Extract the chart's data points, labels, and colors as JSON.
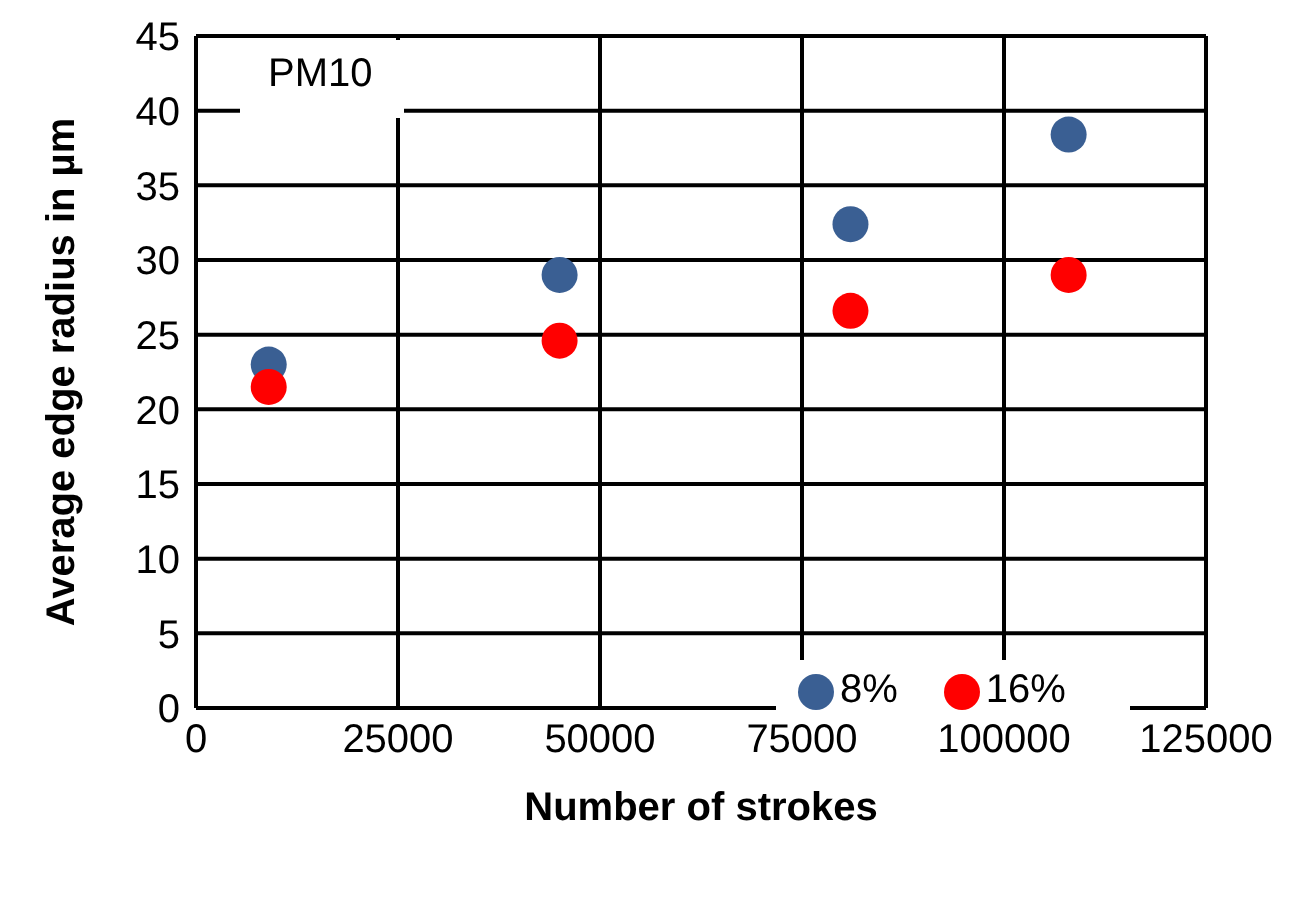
{
  "chart_data": {
    "type": "scatter",
    "xlabel": "Number of strokes",
    "ylabel": "Average edge radius in µm",
    "annotations": [
      "PM10"
    ],
    "x": [
      9000,
      45000,
      81000,
      108000
    ],
    "series": [
      {
        "name": "8%",
        "color": "#3a5f93",
        "values": [
          23,
          29,
          32.4,
          38.4
        ]
      },
      {
        "name": "16%",
        "color": "#ff0000",
        "values": [
          21.5,
          24.6,
          26.6,
          29
        ]
      }
    ],
    "xlim": [
      0,
      125000
    ],
    "xticks": [
      0,
      25000,
      50000,
      75000,
      100000,
      125000
    ],
    "ylim": [
      0,
      45
    ],
    "yticks": [
      0,
      5,
      10,
      15,
      20,
      25,
      30,
      35,
      40,
      45
    ],
    "grid": true,
    "legend": "bottom right",
    "marker": "circle"
  }
}
